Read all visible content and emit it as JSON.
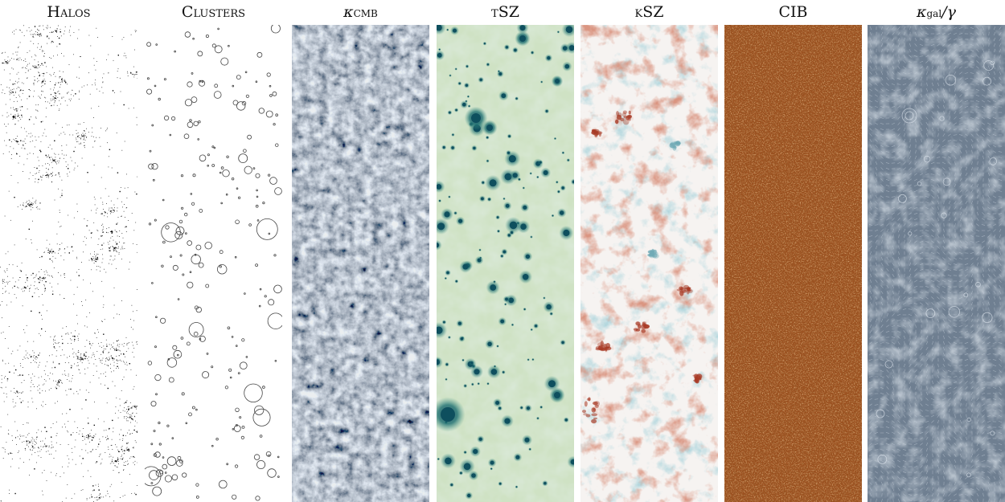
{
  "panels": [
    {
      "id": "halos",
      "title": "Halos",
      "colors": {
        "bg": "#ffffff",
        "fg": "#111111"
      }
    },
    {
      "id": "clusters",
      "title": "Clusters",
      "colors": {
        "bg": "#ffffff",
        "fg": "#444444"
      }
    },
    {
      "id": "kappa_cmb",
      "title_symbol": "κ",
      "title_sub": "CMB",
      "colors": {
        "bg": "#7d8e9a",
        "light": "#c7d2da",
        "dark": "#4f5f6c"
      }
    },
    {
      "id": "tsz",
      "title": "tSZ",
      "colors": {
        "bg": "#cfe2c4",
        "light": "#ebf0dc",
        "dark": "#0e4f5e"
      }
    },
    {
      "id": "ksz",
      "title": "kSZ",
      "colors": {
        "bg": "#f6f3f1",
        "red": "#a83a25",
        "blue": "#6fa9b5"
      }
    },
    {
      "id": "cib",
      "title": "CIB",
      "colors": {
        "bg": "#9a4f1e",
        "light": "#c27a3c",
        "dark": "#5a2a0c"
      }
    },
    {
      "id": "kappa_gal",
      "title_symbol": "κ",
      "title_sub": "gal",
      "title_suffix": "/γ",
      "colors": {
        "bg": "#6f7f91",
        "light": "#aab6c3",
        "dark": "#5b6a7b"
      }
    }
  ]
}
